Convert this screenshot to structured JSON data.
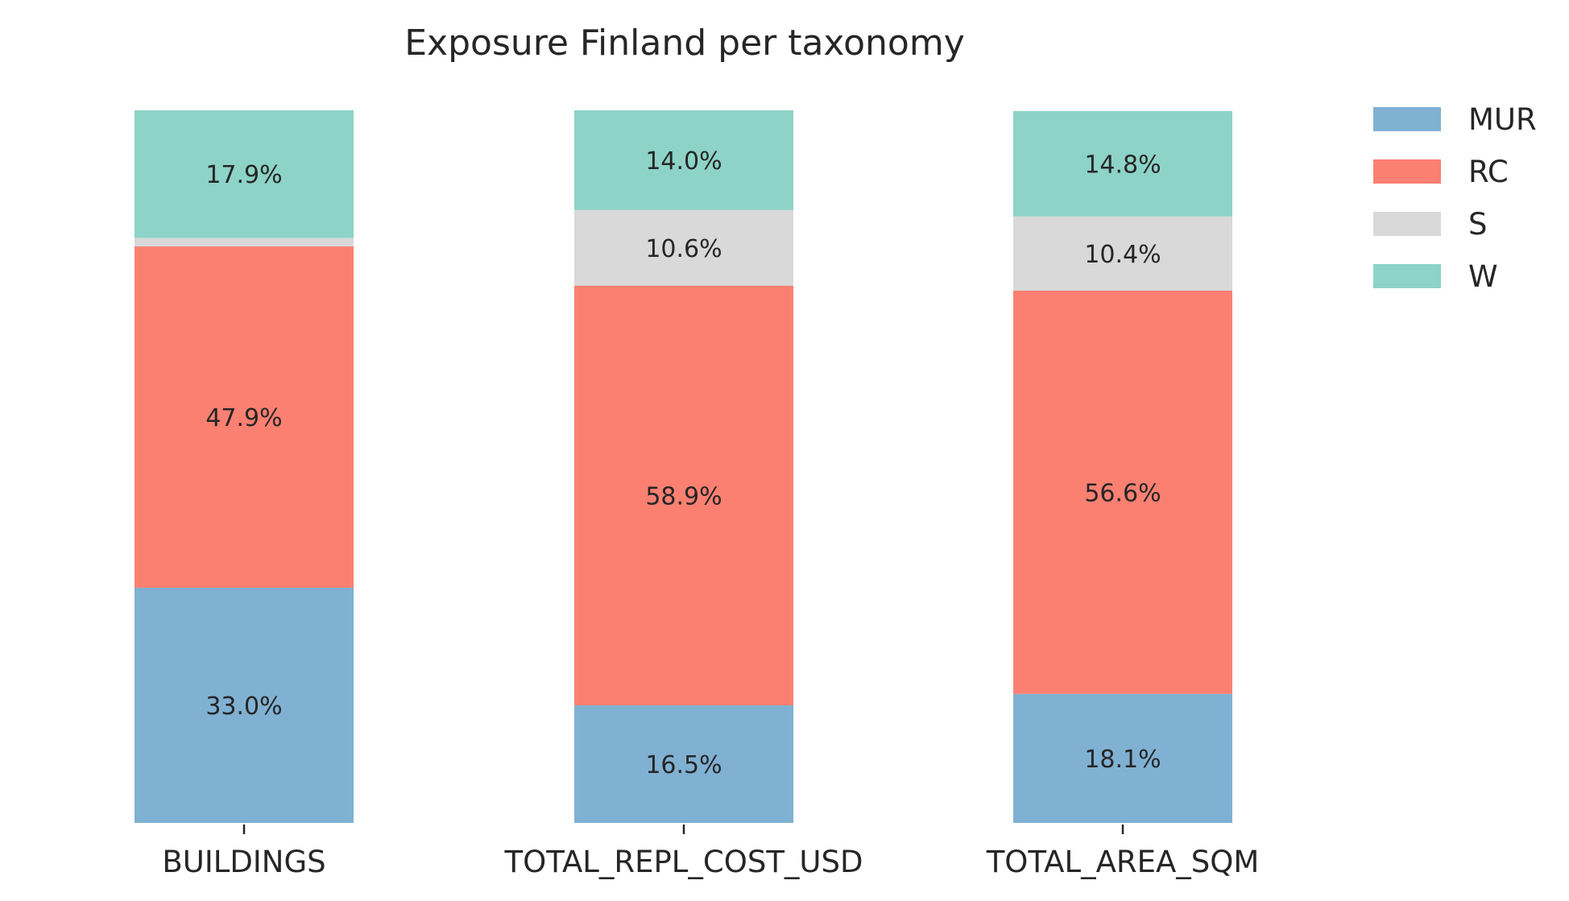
{
  "chart_data": {
    "type": "bar",
    "stacked": true,
    "normalized_percent": true,
    "title": "Exposure Finland per taxonomy",
    "xlabel": "",
    "ylabel": "",
    "ylim": [
      0,
      100
    ],
    "grid": false,
    "legend_position": "top-right",
    "categories": [
      "BUILDINGS",
      "TOTAL_REPL_COST_USD",
      "TOTAL_AREA_SQM"
    ],
    "series": [
      {
        "name": "MUR",
        "color": "#80b1d3",
        "values": [
          33.0,
          16.5,
          18.1
        ],
        "labels": [
          "33.0%",
          "16.5%",
          "18.1%"
        ]
      },
      {
        "name": "RC",
        "color": "#fb8072",
        "values": [
          47.9,
          58.9,
          56.6
        ],
        "labels": [
          "47.9%",
          "58.9%",
          "56.6%"
        ]
      },
      {
        "name": "S",
        "color": "#d9d9d9",
        "values": [
          1.2,
          10.6,
          10.4
        ],
        "labels": [
          "",
          "10.6%",
          "10.4%"
        ]
      },
      {
        "name": "W",
        "color": "#8dd3c7",
        "values": [
          17.9,
          14.0,
          14.8
        ],
        "labels": [
          "17.9%",
          "14.0%",
          "14.8%"
        ]
      }
    ]
  }
}
